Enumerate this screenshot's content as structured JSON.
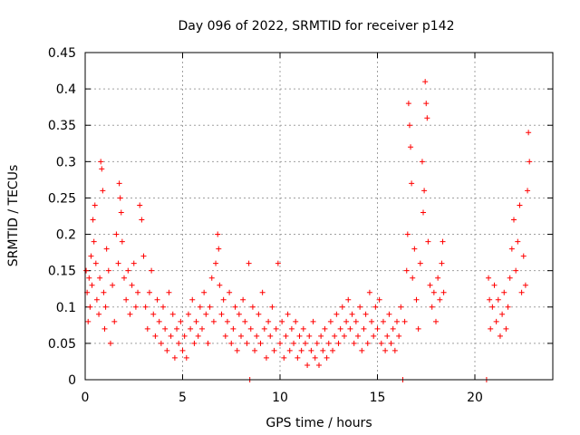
{
  "chart_data": {
    "type": "scatter",
    "title": "Day 096 of 2022, SRMTID for receiver p142",
    "xlabel": "GPS time / hours",
    "ylabel": "SRMTID / TECUs",
    "xlim": [
      0,
      24
    ],
    "ylim": [
      0,
      0.45
    ],
    "x_ticks": [
      0,
      5,
      10,
      15,
      20
    ],
    "x_tick_labels": [
      "0",
      "5",
      "10",
      "15",
      "20"
    ],
    "y_ticks": [
      0,
      0.05,
      0.1,
      0.15,
      0.2,
      0.25,
      0.3,
      0.35,
      0.4,
      0.45
    ],
    "y_tick_labels": [
      "0",
      "0.05",
      "0.1",
      "0.15",
      "0.2",
      "0.25",
      "0.3",
      "0.35",
      "0.4",
      "0.45"
    ],
    "grid": true,
    "marker": "+",
    "color": "#ff0000",
    "series": [
      {
        "name": "SRMTID",
        "points": [
          [
            0.05,
            0.15
          ],
          [
            0.1,
            0.12
          ],
          [
            0.15,
            0.08
          ],
          [
            0.2,
            0.14
          ],
          [
            0.25,
            0.1
          ],
          [
            0.3,
            0.17
          ],
          [
            0.35,
            0.13
          ],
          [
            0.4,
            0.22
          ],
          [
            0.45,
            0.19
          ],
          [
            0.5,
            0.24
          ],
          [
            0.55,
            0.16
          ],
          [
            0.6,
            0.11
          ],
          [
            0.7,
            0.09
          ],
          [
            0.75,
            0.14
          ],
          [
            0.8,
            0.3
          ],
          [
            0.85,
            0.29
          ],
          [
            0.9,
            0.26
          ],
          [
            0.95,
            0.12
          ],
          [
            1.0,
            0.07
          ],
          [
            1.05,
            0.1
          ],
          [
            1.1,
            0.18
          ],
          [
            1.2,
            0.15
          ],
          [
            1.3,
            0.05
          ],
          [
            1.4,
            0.13
          ],
          [
            1.5,
            0.08
          ],
          [
            1.6,
            0.2
          ],
          [
            1.7,
            0.16
          ],
          [
            1.75,
            0.27
          ],
          [
            1.8,
            0.25
          ],
          [
            1.85,
            0.23
          ],
          [
            1.9,
            0.19
          ],
          [
            2.0,
            0.14
          ],
          [
            2.1,
            0.11
          ],
          [
            2.2,
            0.15
          ],
          [
            2.3,
            0.09
          ],
          [
            2.4,
            0.13
          ],
          [
            2.5,
            0.16
          ],
          [
            2.6,
            0.1
          ],
          [
            2.7,
            0.12
          ],
          [
            2.8,
            0.24
          ],
          [
            2.9,
            0.22
          ],
          [
            3.0,
            0.17
          ],
          [
            3.1,
            0.1
          ],
          [
            3.2,
            0.07
          ],
          [
            3.3,
            0.12
          ],
          [
            3.4,
            0.15
          ],
          [
            3.5,
            0.09
          ],
          [
            3.6,
            0.06
          ],
          [
            3.7,
            0.11
          ],
          [
            3.8,
            0.08
          ],
          [
            3.9,
            0.05
          ],
          [
            4.0,
            0.1
          ],
          [
            4.1,
            0.07
          ],
          [
            4.2,
            0.04
          ],
          [
            4.3,
            0.12
          ],
          [
            4.4,
            0.06
          ],
          [
            4.5,
            0.09
          ],
          [
            4.6,
            0.03
          ],
          [
            4.7,
            0.07
          ],
          [
            4.8,
            0.05
          ],
          [
            4.9,
            0.08
          ],
          [
            5.0,
            0.04
          ],
          [
            5.1,
            0.06
          ],
          [
            5.2,
            0.03
          ],
          [
            5.3,
            0.09
          ],
          [
            5.4,
            0.07
          ],
          [
            5.5,
            0.11
          ],
          [
            5.6,
            0.05
          ],
          [
            5.7,
            0.08
          ],
          [
            5.8,
            0.06
          ],
          [
            5.9,
            0.1
          ],
          [
            6.0,
            0.07
          ],
          [
            6.1,
            0.12
          ],
          [
            6.2,
            0.09
          ],
          [
            6.3,
            0.05
          ],
          [
            6.4,
            0.1
          ],
          [
            6.5,
            0.14
          ],
          [
            6.6,
            0.08
          ],
          [
            6.7,
            0.16
          ],
          [
            6.8,
            0.2
          ],
          [
            6.85,
            0.18
          ],
          [
            6.9,
            0.13
          ],
          [
            7.0,
            0.09
          ],
          [
            7.1,
            0.11
          ],
          [
            7.2,
            0.06
          ],
          [
            7.3,
            0.08
          ],
          [
            7.4,
            0.12
          ],
          [
            7.5,
            0.05
          ],
          [
            7.6,
            0.07
          ],
          [
            7.7,
            0.1
          ],
          [
            7.8,
            0.04
          ],
          [
            7.9,
            0.09
          ],
          [
            8.0,
            0.06
          ],
          [
            8.1,
            0.11
          ],
          [
            8.2,
            0.08
          ],
          [
            8.3,
            0.05
          ],
          [
            8.4,
            0.16
          ],
          [
            8.45,
            0.0
          ],
          [
            8.5,
            0.07
          ],
          [
            8.6,
            0.1
          ],
          [
            8.7,
            0.04
          ],
          [
            8.8,
            0.06
          ],
          [
            8.9,
            0.09
          ],
          [
            9.0,
            0.05
          ],
          [
            9.1,
            0.12
          ],
          [
            9.2,
            0.07
          ],
          [
            9.3,
            0.03
          ],
          [
            9.4,
            0.08
          ],
          [
            9.5,
            0.06
          ],
          [
            9.6,
            0.1
          ],
          [
            9.7,
            0.04
          ],
          [
            9.8,
            0.07
          ],
          [
            9.9,
            0.16
          ],
          [
            10.0,
            0.05
          ],
          [
            10.1,
            0.08
          ],
          [
            10.2,
            0.03
          ],
          [
            10.3,
            0.06
          ],
          [
            10.4,
            0.09
          ],
          [
            10.5,
            0.04
          ],
          [
            10.6,
            0.07
          ],
          [
            10.7,
            0.05
          ],
          [
            10.8,
            0.08
          ],
          [
            10.9,
            0.03
          ],
          [
            11.0,
            0.06
          ],
          [
            11.1,
            0.04
          ],
          [
            11.2,
            0.07
          ],
          [
            11.3,
            0.05
          ],
          [
            11.4,
            0.02
          ],
          [
            11.5,
            0.06
          ],
          [
            11.6,
            0.04
          ],
          [
            11.7,
            0.08
          ],
          [
            11.8,
            0.03
          ],
          [
            11.9,
            0.05
          ],
          [
            12.0,
            0.02
          ],
          [
            12.1,
            0.06
          ],
          [
            12.2,
            0.04
          ],
          [
            12.3,
            0.07
          ],
          [
            12.4,
            0.03
          ],
          [
            12.5,
            0.05
          ],
          [
            12.6,
            0.08
          ],
          [
            12.7,
            0.04
          ],
          [
            12.8,
            0.06
          ],
          [
            12.9,
            0.09
          ],
          [
            13.0,
            0.05
          ],
          [
            13.1,
            0.07
          ],
          [
            13.2,
            0.1
          ],
          [
            13.3,
            0.06
          ],
          [
            13.4,
            0.08
          ],
          [
            13.5,
            0.11
          ],
          [
            13.6,
            0.07
          ],
          [
            13.7,
            0.09
          ],
          [
            13.8,
            0.05
          ],
          [
            13.9,
            0.08
          ],
          [
            14.0,
            0.06
          ],
          [
            14.1,
            0.1
          ],
          [
            14.2,
            0.04
          ],
          [
            14.3,
            0.07
          ],
          [
            14.4,
            0.09
          ],
          [
            14.5,
            0.05
          ],
          [
            14.6,
            0.12
          ],
          [
            14.7,
            0.08
          ],
          [
            14.8,
            0.06
          ],
          [
            14.9,
            0.1
          ],
          [
            15.0,
            0.07
          ],
          [
            15.1,
            0.11
          ],
          [
            15.2,
            0.05
          ],
          [
            15.3,
            0.08
          ],
          [
            15.4,
            0.04
          ],
          [
            15.5,
            0.06
          ],
          [
            15.6,
            0.09
          ],
          [
            15.7,
            0.05
          ],
          [
            15.8,
            0.07
          ],
          [
            15.9,
            0.04
          ],
          [
            16.0,
            0.08
          ],
          [
            16.1,
            0.06
          ],
          [
            16.2,
            0.1
          ],
          [
            16.3,
            0.0
          ],
          [
            16.4,
            0.08
          ],
          [
            16.5,
            0.15
          ],
          [
            16.55,
            0.2
          ],
          [
            16.6,
            0.38
          ],
          [
            16.65,
            0.35
          ],
          [
            16.7,
            0.32
          ],
          [
            16.75,
            0.27
          ],
          [
            16.8,
            0.14
          ],
          [
            16.9,
            0.18
          ],
          [
            17.0,
            0.11
          ],
          [
            17.1,
            0.07
          ],
          [
            17.2,
            0.16
          ],
          [
            17.3,
            0.3
          ],
          [
            17.35,
            0.23
          ],
          [
            17.4,
            0.26
          ],
          [
            17.45,
            0.41
          ],
          [
            17.5,
            0.38
          ],
          [
            17.55,
            0.36
          ],
          [
            17.6,
            0.19
          ],
          [
            17.7,
            0.13
          ],
          [
            17.8,
            0.1
          ],
          [
            17.9,
            0.12
          ],
          [
            18.0,
            0.08
          ],
          [
            18.1,
            0.14
          ],
          [
            18.2,
            0.11
          ],
          [
            18.3,
            0.16
          ],
          [
            18.35,
            0.19
          ],
          [
            18.4,
            0.12
          ],
          [
            20.6,
            0.0
          ],
          [
            20.7,
            0.14
          ],
          [
            20.75,
            0.11
          ],
          [
            20.8,
            0.07
          ],
          [
            20.9,
            0.1
          ],
          [
            21.0,
            0.13
          ],
          [
            21.1,
            0.08
          ],
          [
            21.2,
            0.11
          ],
          [
            21.3,
            0.06
          ],
          [
            21.4,
            0.09
          ],
          [
            21.5,
            0.12
          ],
          [
            21.6,
            0.07
          ],
          [
            21.7,
            0.1
          ],
          [
            21.8,
            0.14
          ],
          [
            21.9,
            0.18
          ],
          [
            22.0,
            0.22
          ],
          [
            22.1,
            0.15
          ],
          [
            22.2,
            0.19
          ],
          [
            22.3,
            0.24
          ],
          [
            22.4,
            0.12
          ],
          [
            22.5,
            0.17
          ],
          [
            22.6,
            0.13
          ],
          [
            22.7,
            0.26
          ],
          [
            22.75,
            0.34
          ],
          [
            22.8,
            0.3
          ]
        ]
      }
    ]
  }
}
